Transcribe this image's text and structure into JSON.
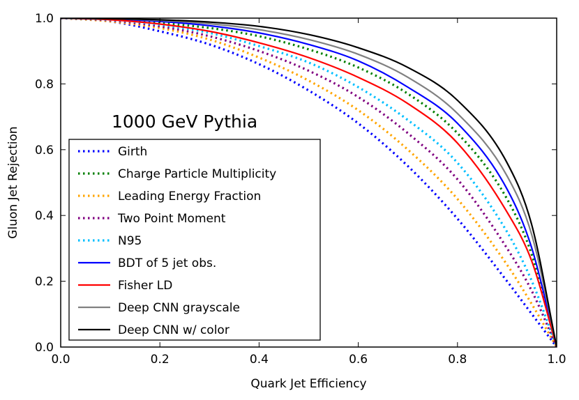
{
  "chart_data": {
    "type": "line",
    "title": "",
    "annotation": "1000 GeV Pythia",
    "xlabel": "Quark Jet Efficiency",
    "ylabel": "Gluon Jet Rejection",
    "xlim": [
      0.0,
      1.0
    ],
    "ylim": [
      0.0,
      1.0
    ],
    "xticks": [
      "0.0",
      "0.2",
      "0.4",
      "0.6",
      "0.8",
      "1.0"
    ],
    "yticks": [
      "0.0",
      "0.2",
      "0.4",
      "0.6",
      "0.8",
      "1.0"
    ],
    "grid": false,
    "legend_position": "lower-left",
    "series": [
      {
        "name": "Girth",
        "color": "#0000ff",
        "style": "dotted",
        "x": [
          0,
          0.1,
          0.2,
          0.3,
          0.4,
          0.5,
          0.6,
          0.7,
          0.8,
          0.9,
          0.95,
          1.0
        ],
        "y": [
          1.0,
          0.99,
          0.96,
          0.92,
          0.86,
          0.78,
          0.68,
          0.55,
          0.39,
          0.2,
          0.1,
          0.0
        ]
      },
      {
        "name": "Charge Particle Multiplicity",
        "color": "#007f00",
        "style": "dotted",
        "x": [
          0,
          0.1,
          0.2,
          0.3,
          0.4,
          0.5,
          0.6,
          0.7,
          0.8,
          0.9,
          0.95,
          1.0
        ],
        "y": [
          1.0,
          0.995,
          0.985,
          0.97,
          0.945,
          0.905,
          0.85,
          0.77,
          0.65,
          0.45,
          0.28,
          0.0
        ]
      },
      {
        "name": "Leading Energy Fraction",
        "color": "#ffa500",
        "style": "dotted",
        "x": [
          0,
          0.1,
          0.2,
          0.3,
          0.4,
          0.5,
          0.6,
          0.7,
          0.8,
          0.9,
          0.95,
          1.0
        ],
        "y": [
          1.0,
          0.99,
          0.97,
          0.935,
          0.88,
          0.81,
          0.72,
          0.6,
          0.45,
          0.25,
          0.13,
          0.0
        ]
      },
      {
        "name": "Two Point Moment",
        "color": "#800080",
        "style": "dotted",
        "x": [
          0,
          0.1,
          0.2,
          0.3,
          0.4,
          0.5,
          0.6,
          0.7,
          0.8,
          0.9,
          0.95,
          1.0
        ],
        "y": [
          1.0,
          0.993,
          0.975,
          0.945,
          0.9,
          0.84,
          0.76,
          0.65,
          0.51,
          0.3,
          0.17,
          0.0
        ]
      },
      {
        "name": "N95",
        "color": "#00bfff",
        "style": "dotted",
        "x": [
          0,
          0.1,
          0.2,
          0.3,
          0.4,
          0.5,
          0.6,
          0.7,
          0.8,
          0.9,
          0.95,
          1.0
        ],
        "y": [
          1.0,
          0.995,
          0.98,
          0.955,
          0.915,
          0.865,
          0.79,
          0.69,
          0.56,
          0.35,
          0.2,
          0.0
        ]
      },
      {
        "name": "BDT of 5 jet obs.",
        "color": "#0000ff",
        "style": "solid",
        "x": [
          0,
          0.1,
          0.2,
          0.3,
          0.4,
          0.5,
          0.6,
          0.7,
          0.8,
          0.9,
          0.95,
          1.0
        ],
        "y": [
          1.0,
          0.997,
          0.99,
          0.977,
          0.955,
          0.92,
          0.87,
          0.79,
          0.68,
          0.48,
          0.3,
          0.0
        ]
      },
      {
        "name": "Fisher LD",
        "color": "#ff0000",
        "style": "solid",
        "x": [
          0,
          0.1,
          0.2,
          0.3,
          0.4,
          0.5,
          0.6,
          0.7,
          0.8,
          0.9,
          0.95,
          1.0
        ],
        "y": [
          1.0,
          0.995,
          0.982,
          0.96,
          0.925,
          0.88,
          0.82,
          0.74,
          0.62,
          0.41,
          0.26,
          0.0
        ]
      },
      {
        "name": "Deep CNN grayscale",
        "color": "#808080",
        "style": "solid",
        "x": [
          0,
          0.1,
          0.2,
          0.3,
          0.4,
          0.5,
          0.6,
          0.7,
          0.8,
          0.9,
          0.95,
          1.0
        ],
        "y": [
          1.0,
          0.998,
          0.993,
          0.983,
          0.965,
          0.935,
          0.89,
          0.82,
          0.71,
          0.52,
          0.34,
          0.0
        ]
      },
      {
        "name": "Deep CNN w/ color",
        "color": "#000000",
        "style": "solid",
        "x": [
          0,
          0.1,
          0.2,
          0.3,
          0.4,
          0.5,
          0.6,
          0.7,
          0.8,
          0.9,
          0.95,
          1.0
        ],
        "y": [
          1.0,
          0.998,
          0.995,
          0.988,
          0.975,
          0.95,
          0.91,
          0.85,
          0.75,
          0.56,
          0.37,
          0.0
        ]
      }
    ]
  }
}
